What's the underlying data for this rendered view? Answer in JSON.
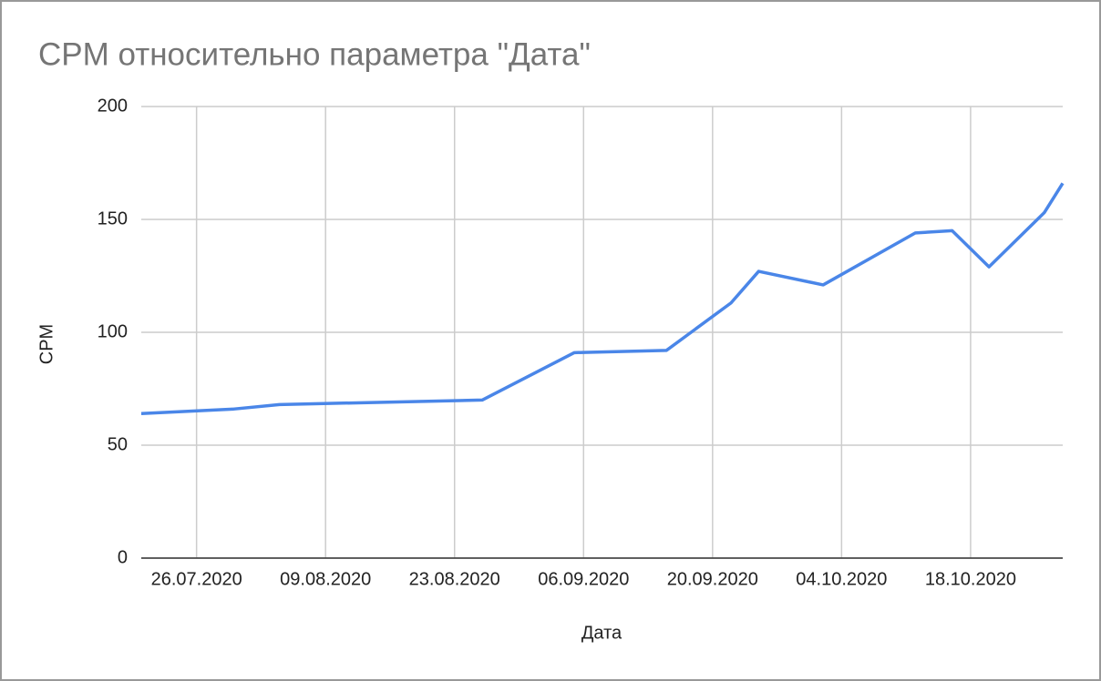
{
  "chart_data": {
    "type": "line",
    "title": "CPM относительно параметра \"Дата\"",
    "x_label": "Дата",
    "y_label": "CPM",
    "x": [
      "20.07.2020",
      "30.07.2020",
      "04.08.2020",
      "26.08.2020",
      "05.09.2020",
      "15.09.2020",
      "22.09.2020",
      "25.09.2020",
      "02.10.2020",
      "12.10.2020",
      "16.10.2020",
      "20.10.2020",
      "26.10.2020",
      "28.10.2020"
    ],
    "series": [
      {
        "name": "CPM",
        "color": "#4a86e8",
        "values": [
          64,
          66,
          68,
          70,
          91,
          92,
          113,
          127,
          121,
          144,
          145,
          129,
          153,
          166
        ]
      }
    ],
    "xlim": [
      "20.07.2020",
      "28.10.2020"
    ],
    "xticks": [
      "26.07.2020",
      "09.08.2020",
      "23.08.2020",
      "06.09.2020",
      "20.09.2020",
      "04.10.2020",
      "18.10.2020"
    ],
    "ylim": [
      0,
      200
    ],
    "yticks": [
      0,
      50,
      100,
      150,
      200
    ],
    "grid": true
  }
}
